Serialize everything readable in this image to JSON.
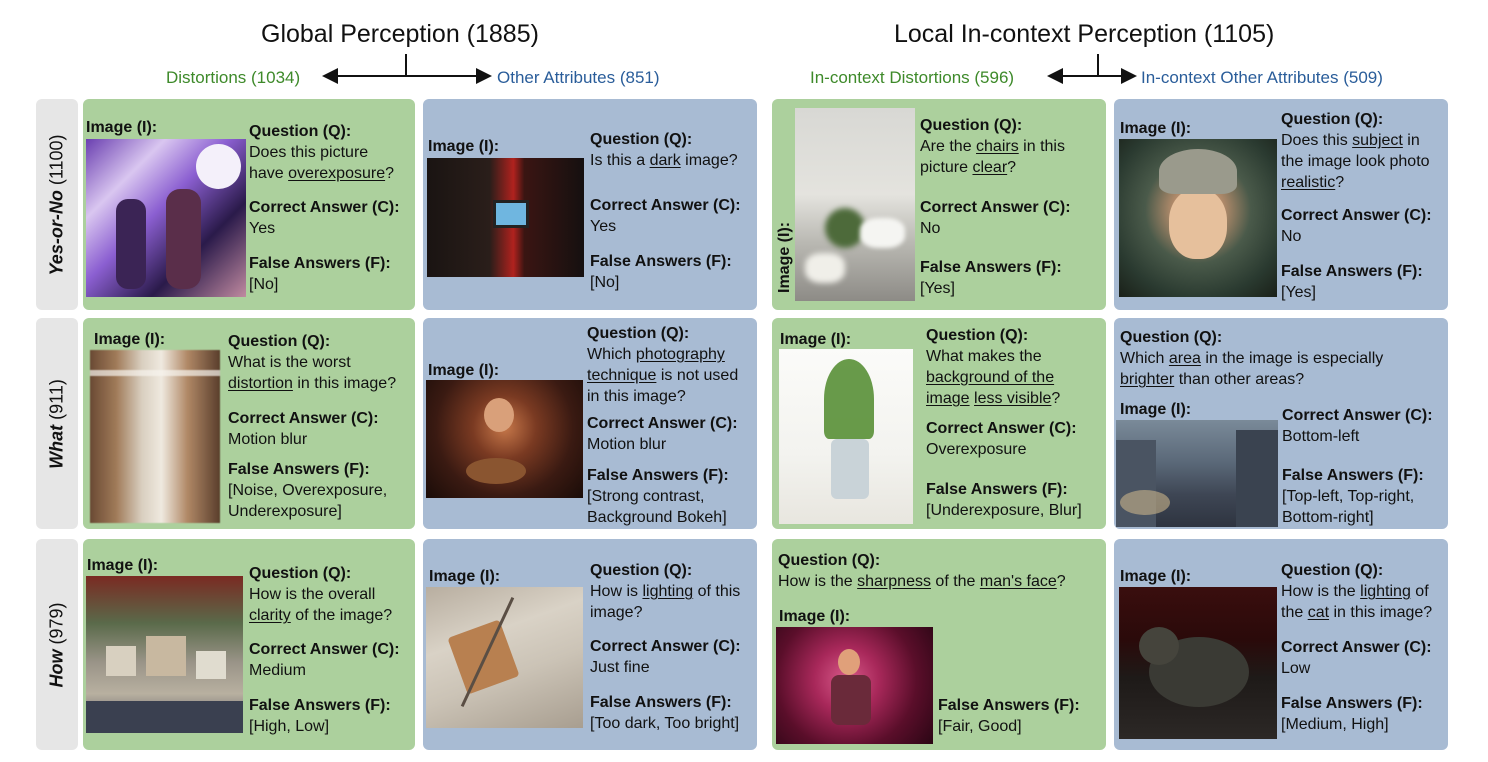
{
  "header": {
    "global_title": "Global Perception (1885)",
    "local_title": "Local In-context Perception (1105)",
    "distortions": "Distortions (1034)",
    "other_attributes": "Other Attributes (851)",
    "incontext_distortions": "In-context Distortions (596)",
    "incontext_other": "In-context Other Attributes (509)"
  },
  "labels": {
    "image": "Image (I):",
    "question": "Question (Q):",
    "correct": "Correct Answer (C):",
    "false": "False Answers (F):"
  },
  "rows": {
    "yesno_name": "Yes-or-No",
    "yesno_count": "(1100)",
    "what_name": "What",
    "what_count": "(911)",
    "how_name": "How",
    "how_count": "(979)"
  },
  "cards": {
    "c11": {
      "q1a": "Does this picture",
      "q2a": "have ",
      "q2u": "overexposure",
      "q2b": "?",
      "answer": "Yes",
      "false": "[No]"
    },
    "c12": {
      "q1a": "Is this a ",
      "q1u": "dark",
      "q1b": " image?",
      "answer": "Yes",
      "false": "[No]"
    },
    "c13": {
      "q1a": "Are the ",
      "q1u": "chairs",
      "q1b": " in this",
      "q2a": "picture ",
      "q2u": "clear",
      "q2b": "?",
      "answer": "No",
      "false": "[Yes]"
    },
    "c14": {
      "q1a": "Does this ",
      "q1u": "subject",
      "q1b": " in",
      "q2a": "the image look photo",
      "q3u": "realistic",
      "q3b": "?",
      "answer": "No",
      "false": "[Yes]"
    },
    "c21": {
      "q1": "What is the worst",
      "q2u": "distortion",
      "q2b": " in this image?",
      "answer": "Motion blur",
      "false1": "[Noise, Overexposure,",
      "false2": "Underexposure]"
    },
    "c22": {
      "q1a": "Which ",
      "q1u": "photography",
      "q2u": "technique",
      "q2b": " is not used",
      "q3": "in this image?",
      "answer": "Motion blur",
      "false1": "[Strong contrast,",
      "false2": "Background Bokeh]"
    },
    "c23": {
      "q1": "What makes the",
      "q2u": "background of the",
      "q3u1": "image",
      "q3mid": " ",
      "q3u2": "less visible",
      "q3b": "?",
      "answer": "Overexposure",
      "false": "[Underexposure, Blur]"
    },
    "c24": {
      "q1a": "Which ",
      "q1u": "area",
      "q1b": " in the image is especially",
      "q2u": "brighter",
      "q2b": " than other areas?",
      "answer": "Bottom-left",
      "false1": "[Top-left, Top-right,",
      "false2": "Bottom-right]"
    },
    "c31": {
      "q1": "How is the overall",
      "q2u": "clarity",
      "q2b": " of the image?",
      "answer": "Medium",
      "false": "[High, Low]"
    },
    "c32": {
      "q1a": "How is ",
      "q1u": "lighting",
      "q1b": " of this",
      "q2": "image?",
      "answer": "Just fine",
      "false": "[Too dark, Too bright]"
    },
    "c33": {
      "qa": "How is the ",
      "qu1": "sharpness",
      "qb": " of the ",
      "qu2": "man's face",
      "qc": "?",
      "false": "[Fair, Good]"
    },
    "c34": {
      "q1a": "How is the ",
      "q1u": "lighting",
      "q1b": " of",
      "q2a": "the ",
      "q2u": "cat",
      "q2b": " in this image?",
      "answer": "Low",
      "false": "[Medium, High]"
    }
  },
  "colors": {
    "green_card": "#acd09d",
    "blue_card": "#a8bbd3",
    "green_text": "#3e8a2a",
    "blue_text": "#2a5d9a"
  }
}
